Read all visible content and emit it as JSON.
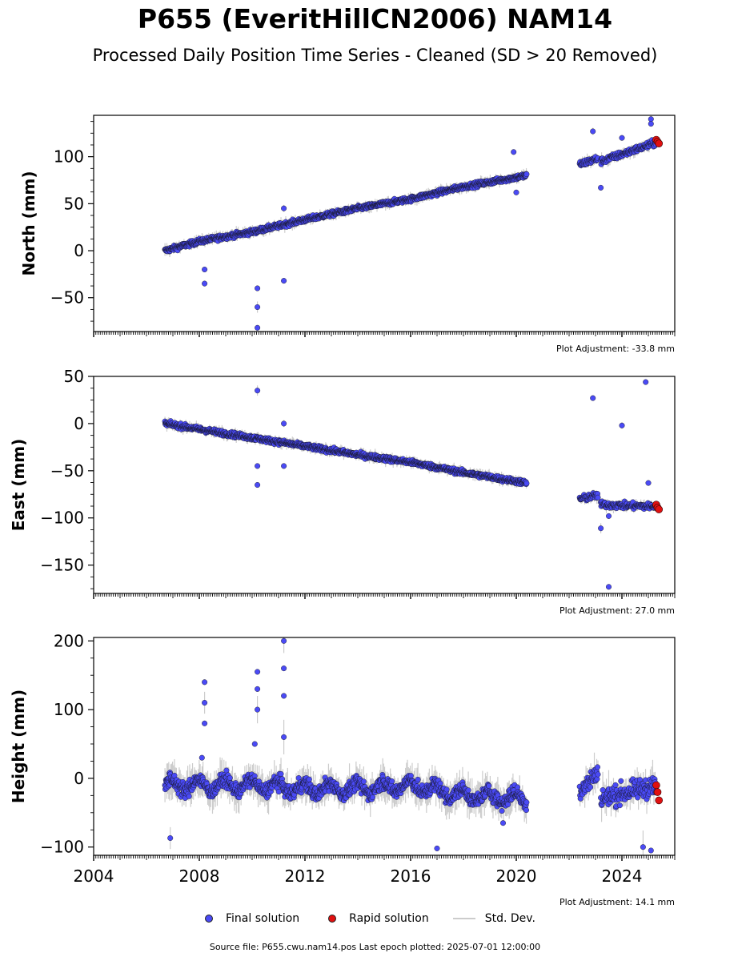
{
  "title": "P655 (EveritHillCN2006) NAM14",
  "subtitle": "Processed Daily Position Time Series - Cleaned (SD > 20 Removed)",
  "legend": {
    "final": "Final solution",
    "rapid": "Rapid solution",
    "stddev": "Std. Dev."
  },
  "footer": "Source file: P655.cwu.nam14.pos  Last epoch plotted: 2025-07-01 12:00:00",
  "colors": {
    "final": "#4a4af5",
    "rapid": "#e01010",
    "stddev": "#cccccc"
  },
  "chart_data": [
    {
      "type": "scatter",
      "ylabel": "North (mm)",
      "note": "Plot Adjustment: -33.8 mm",
      "xlim": [
        2004,
        2026
      ],
      "ylim": [
        -86,
        144
      ],
      "yticks": [
        -50,
        0,
        50,
        100
      ],
      "xticks": [
        2004,
        2008,
        2012,
        2016,
        2020,
        2024
      ],
      "series": [
        {
          "name": "Final solution",
          "trend": [
            [
              2006.7,
              0
            ],
            [
              2008,
              10
            ],
            [
              2010,
              20
            ],
            [
              2012,
              33
            ],
            [
              2014,
              45
            ],
            [
              2016,
              55
            ],
            [
              2018,
              68
            ],
            [
              2020.4,
              80
            ]
          ],
          "segments": [
            [
              2022.4,
              2023.1,
              92,
              98
            ],
            [
              2023.2,
              2025.3,
              95,
              115
            ]
          ],
          "outliers": [
            [
              2008.2,
              -35
            ],
            [
              2008.2,
              -20
            ],
            [
              2010.2,
              -82
            ],
            [
              2010.2,
              -60
            ],
            [
              2010.2,
              -40
            ],
            [
              2011.2,
              -32
            ],
            [
              2011.2,
              45
            ],
            [
              2019.9,
              105
            ],
            [
              2020.0,
              62
            ],
            [
              2022.9,
              127
            ],
            [
              2023.2,
              67
            ],
            [
              2024.0,
              120
            ],
            [
              2025.1,
              140
            ],
            [
              2025.1,
              135
            ]
          ]
        },
        {
          "name": "Rapid solution",
          "points": [
            [
              2025.3,
              118
            ],
            [
              2025.35,
              116
            ],
            [
              2025.4,
              114
            ]
          ]
        }
      ]
    },
    {
      "type": "scatter",
      "ylabel": "East (mm)",
      "note": "Plot Adjustment: 27.0 mm",
      "xlim": [
        2004,
        2026
      ],
      "ylim": [
        -180,
        50
      ],
      "yticks": [
        -150,
        -100,
        -50,
        0,
        50
      ],
      "xticks": [
        2004,
        2008,
        2012,
        2016,
        2020,
        2024
      ],
      "series": [
        {
          "name": "Final solution",
          "trend": [
            [
              2006.7,
              0
            ],
            [
              2008,
              -6
            ],
            [
              2010,
              -15
            ],
            [
              2012,
              -24
            ],
            [
              2014,
              -33
            ],
            [
              2016,
              -41
            ],
            [
              2018,
              -52
            ],
            [
              2020.4,
              -63
            ]
          ],
          "segments": [
            [
              2022.4,
              2023.1,
              -80,
              -76
            ],
            [
              2023.2,
              2025.3,
              -86,
              -88
            ]
          ],
          "outliers": [
            [
              2010.2,
              35
            ],
            [
              2010.2,
              -65
            ],
            [
              2010.2,
              -45
            ],
            [
              2011.2,
              0
            ],
            [
              2011.2,
              -45
            ],
            [
              2022.9,
              27
            ],
            [
              2023.2,
              -111
            ],
            [
              2023.5,
              -98
            ],
            [
              2023.5,
              -173
            ],
            [
              2024.0,
              -2
            ],
            [
              2024.9,
              44
            ],
            [
              2025.0,
              -63
            ]
          ]
        },
        {
          "name": "Rapid solution",
          "points": [
            [
              2025.3,
              -86
            ],
            [
              2025.35,
              -89
            ],
            [
              2025.4,
              -91
            ]
          ]
        }
      ]
    },
    {
      "type": "scatter",
      "ylabel": "Height (mm)",
      "note": "Plot Adjustment: 14.1 mm",
      "xlim": [
        2004,
        2026
      ],
      "ylim": [
        -112,
        205
      ],
      "yticks": [
        -100,
        0,
        100,
        200
      ],
      "xticks": [
        2004,
        2008,
        2012,
        2016,
        2020,
        2024
      ],
      "xticklabels": [
        "2004",
        "2008",
        "2012",
        "2016",
        "2020",
        "2024"
      ],
      "series": [
        {
          "name": "Final solution",
          "trend": [
            [
              2006.7,
              -10
            ],
            [
              2008,
              -10
            ],
            [
              2010,
              -10
            ],
            [
              2012,
              -15
            ],
            [
              2014,
              -15
            ],
            [
              2016,
              -10
            ],
            [
              2018,
              -25
            ],
            [
              2020.4,
              -30
            ]
          ],
          "segments": [
            [
              2022.4,
              2023.1,
              -20,
              10
            ],
            [
              2023.2,
              2025.3,
              -30,
              -10
            ]
          ],
          "outliers": [
            [
              2006.9,
              -87
            ],
            [
              2008.1,
              30
            ],
            [
              2008.2,
              80
            ],
            [
              2008.2,
              110
            ],
            [
              2008.2,
              140
            ],
            [
              2010.1,
              50
            ],
            [
              2010.2,
              100
            ],
            [
              2010.2,
              130
            ],
            [
              2010.2,
              155
            ],
            [
              2011.2,
              60
            ],
            [
              2011.2,
              120
            ],
            [
              2011.2,
              160
            ],
            [
              2011.2,
              200
            ],
            [
              2017.0,
              -102
            ],
            [
              2019.5,
              -65
            ],
            [
              2024.8,
              -100
            ],
            [
              2025.1,
              -105
            ]
          ]
        },
        {
          "name": "Rapid solution",
          "points": [
            [
              2025.3,
              -10
            ],
            [
              2025.35,
              -20
            ],
            [
              2025.4,
              -32
            ]
          ]
        }
      ]
    }
  ]
}
